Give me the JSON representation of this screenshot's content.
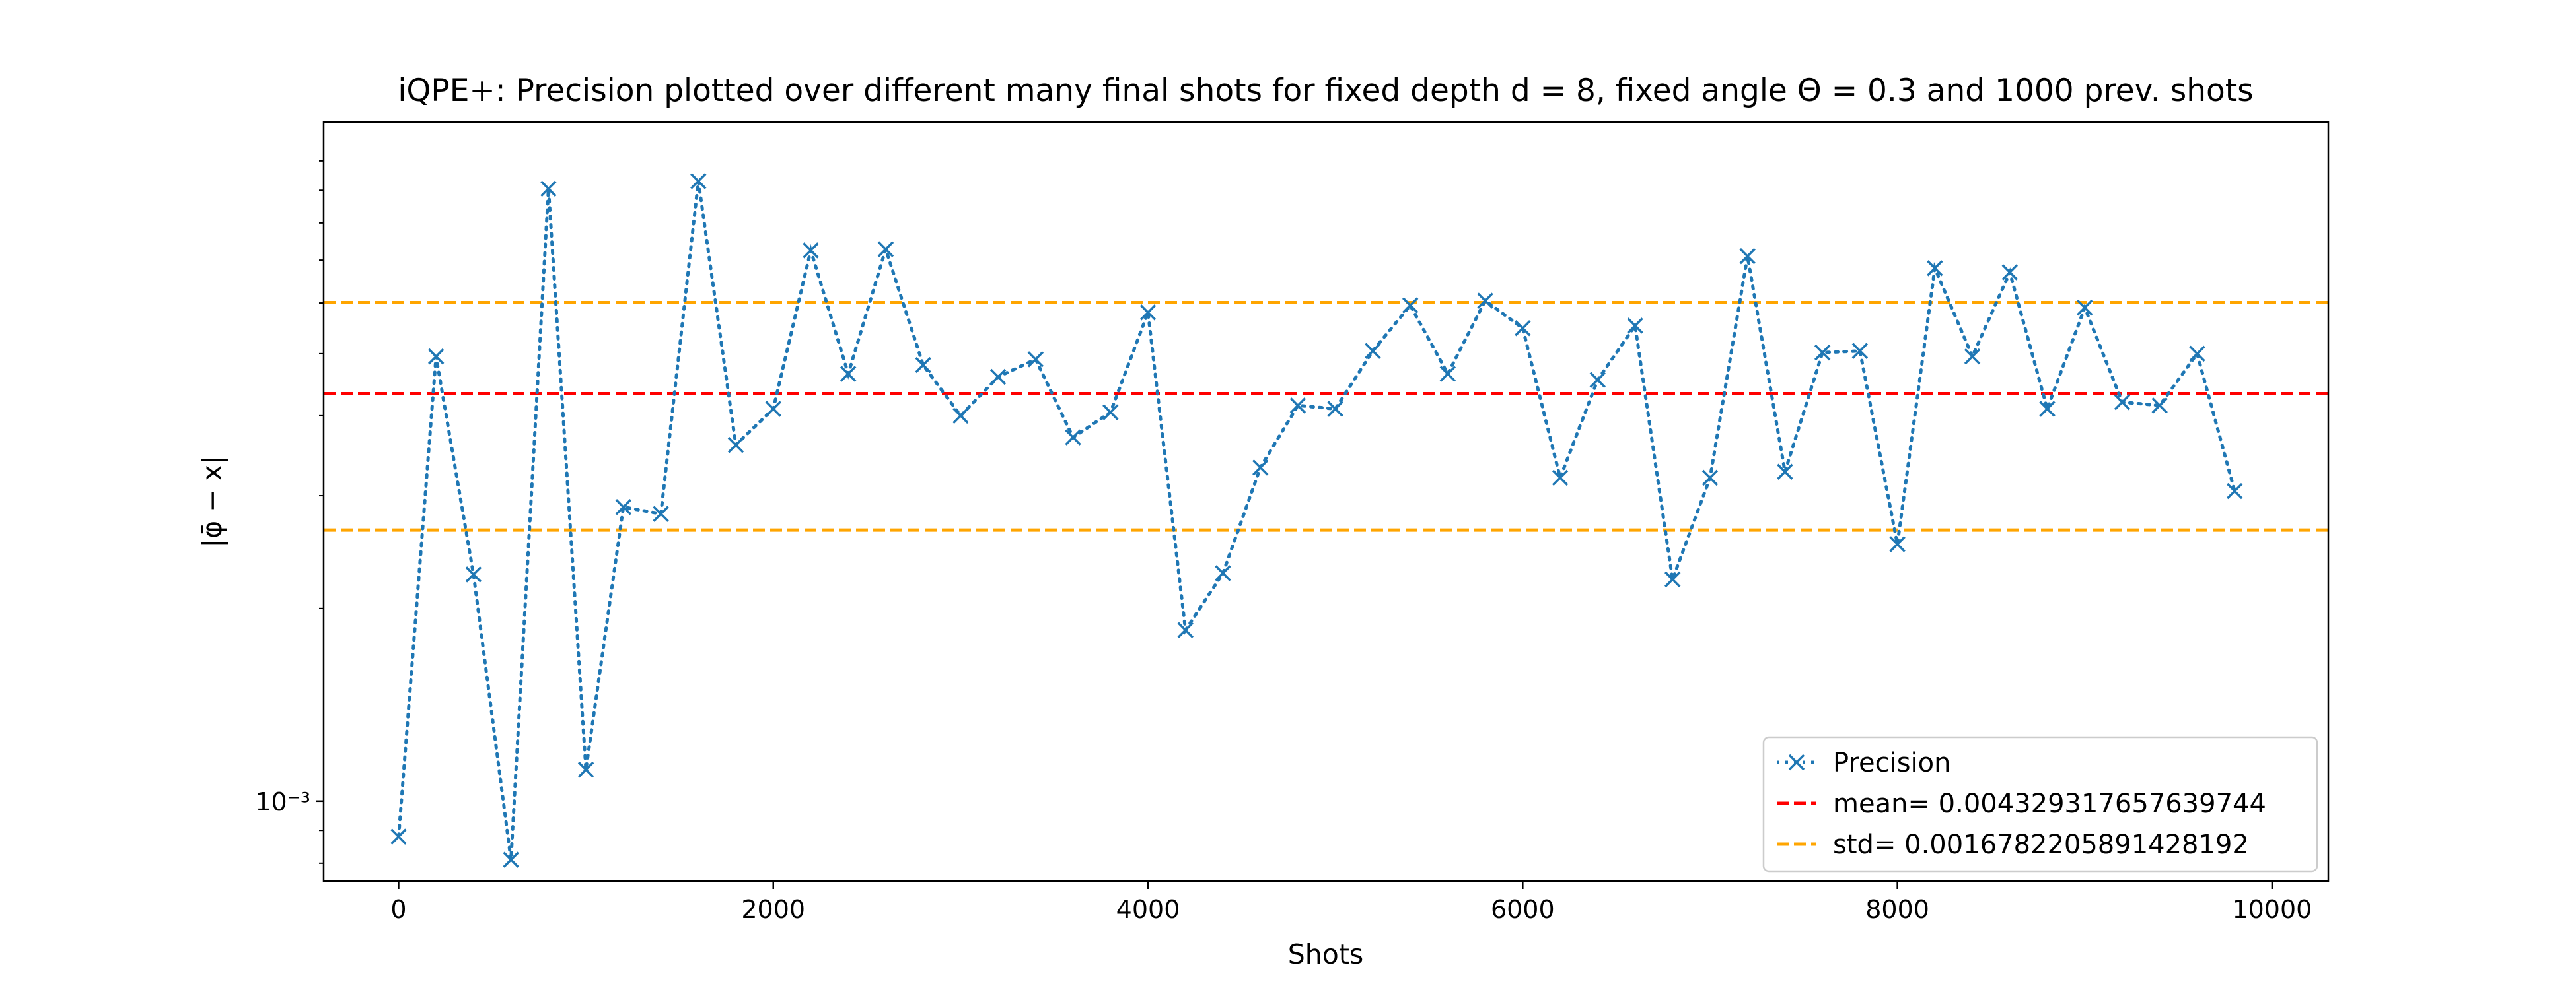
{
  "chart_data": {
    "type": "line",
    "title": "iQPE+: Precision plotted over different many final shots for fixed depth d = 8, fixed angle Θ = 0.3 and 1000 prev. shots",
    "xlabel": "Shots",
    "ylabel": "|φ̄ − x|",
    "xlim": [
      -400,
      10300
    ],
    "ylim": [
      0.00075,
      0.0115
    ],
    "yscale": "log",
    "x_ticks": [
      0,
      2000,
      4000,
      6000,
      8000,
      10000
    ],
    "x_tick_labels": [
      "0",
      "2000",
      "4000",
      "6000",
      "8000",
      "10000"
    ],
    "y_ticks": [
      0.001
    ],
    "y_tick_labels": [
      "10⁻³"
    ],
    "grid": false,
    "legend_position": "lower-right",
    "series": [
      {
        "name": "Precision",
        "color": "#1f77b4",
        "style": "dotted",
        "marker": "x",
        "x": [
          0,
          200,
          400,
          600,
          800,
          1000,
          1200,
          1400,
          1600,
          1800,
          2000,
          2200,
          2400,
          2600,
          2800,
          3000,
          3200,
          3400,
          3600,
          3800,
          4000,
          4200,
          4400,
          4600,
          4800,
          5000,
          5200,
          5400,
          5600,
          5800,
          6000,
          6200,
          6400,
          6600,
          6800,
          7000,
          7200,
          7400,
          7600,
          7800,
          8000,
          8200,
          8400,
          8600,
          8800,
          9000,
          9200,
          9400,
          9600,
          9800
        ],
        "y": [
          0.00088,
          0.00495,
          0.00226,
          0.00081,
          0.00905,
          0.00112,
          0.00288,
          0.00281,
          0.0093,
          0.0036,
          0.0041,
          0.00725,
          0.00465,
          0.00728,
          0.0048,
          0.004,
          0.0046,
          0.0049,
          0.0037,
          0.00405,
          0.0058,
          0.00185,
          0.00227,
          0.00332,
          0.00415,
          0.0041,
          0.00505,
          0.00595,
          0.00465,
          0.00605,
          0.00548,
          0.0032,
          0.00455,
          0.00553,
          0.00222,
          0.0032,
          0.0071,
          0.00327,
          0.00502,
          0.00505,
          0.00252,
          0.0068,
          0.00495,
          0.0067,
          0.0041,
          0.0059,
          0.0042,
          0.00415,
          0.005,
          0.00305
        ]
      }
    ],
    "lines": [
      {
        "name": "mean= 0.004329317657639744",
        "value": 0.004329317657639744,
        "color": "#ff0000",
        "style": "dashed"
      },
      {
        "name": "std= 0.0016782205891428192",
        "value": 0.002651097068496925,
        "color": "#ffa500",
        "style": "dashed"
      },
      {
        "name": "std= 0.0016782205891428192",
        "value": 0.006007538246782563,
        "color": "#ffa500",
        "style": "dashed"
      }
    ],
    "legend": [
      {
        "label": "Precision",
        "color": "#1f77b4",
        "style": "dotted",
        "marker": "x"
      },
      {
        "label": "mean= 0.004329317657639744",
        "color": "#ff0000",
        "style": "dashed"
      },
      {
        "label": "std= 0.0016782205891428192",
        "color": "#ffa500",
        "style": "dashed"
      }
    ]
  }
}
